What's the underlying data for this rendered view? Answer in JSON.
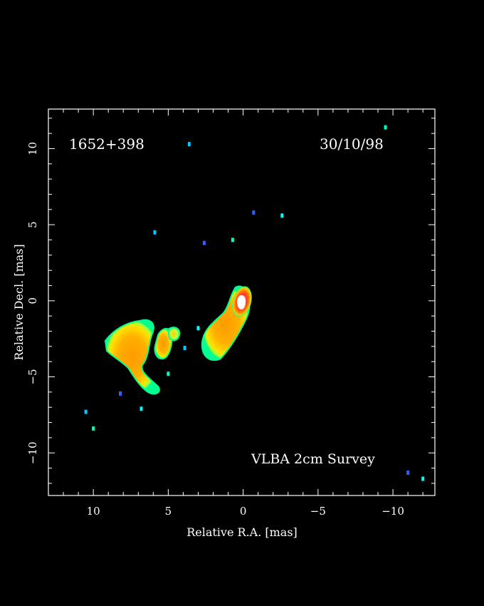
{
  "chart_data": {
    "type": "heatmap",
    "source": "1652+398",
    "date": "30/10/98",
    "survey_label": "VLBA 2cm Survey",
    "xlabel": "Relative R.A. [mas]",
    "ylabel": "Relative Decl. [mas]",
    "xlim": [
      13,
      -12.8
    ],
    "ylim": [
      -12.8,
      12.6
    ],
    "x_ticks": [
      10,
      5,
      0,
      -5,
      -10
    ],
    "y_ticks": [
      10,
      5,
      0,
      -5,
      -10
    ],
    "x_tick_labels": [
      "10",
      "5",
      "0",
      "−5",
      "−10"
    ],
    "y_tick_labels": [
      "10",
      "5",
      "0",
      "−5",
      "−10"
    ],
    "x_minor_step": 1,
    "y_minor_step": 1,
    "background_color": "#000000",
    "colormap": [
      "#0000ff",
      "#00ffff",
      "#00ff80",
      "#ffff00",
      "#ffa500",
      "#ff4000",
      "#ffffff"
    ],
    "components": [
      {
        "name": "core",
        "x": 0.0,
        "y": 0.0,
        "peak_level": 6
      },
      {
        "name": "inner-jet",
        "x": -0.1,
        "y": -0.7,
        "peak_level": 4
      },
      {
        "name": "jet-knot",
        "x": 1.9,
        "y": -2.7,
        "peak_level": 3
      },
      {
        "name": "knot-a",
        "x": 5.0,
        "y": -2.8,
        "peak_level": 3
      },
      {
        "name": "knot-b",
        "x": 4.8,
        "y": -2.2,
        "peak_level": 2
      },
      {
        "name": "outer-lobe",
        "x": 7.5,
        "y": -2.8,
        "peak_level": 3
      },
      {
        "name": "outer-lobe-tail",
        "x": 6.5,
        "y": -5.3,
        "peak_level": 3
      }
    ],
    "noise_spots": [
      {
        "x": 3.6,
        "y": 10.3
      },
      {
        "x": -9.5,
        "y": 11.4
      },
      {
        "x": -0.7,
        "y": 5.8
      },
      {
        "x": -2.6,
        "y": 5.6
      },
      {
        "x": 5.9,
        "y": 4.5
      },
      {
        "x": 0.7,
        "y": 4.0
      },
      {
        "x": 2.6,
        "y": 3.8
      },
      {
        "x": 3.0,
        "y": -1.8
      },
      {
        "x": 3.9,
        "y": -3.1
      },
      {
        "x": 5.0,
        "y": -4.8
      },
      {
        "x": 8.2,
        "y": -6.1
      },
      {
        "x": 6.8,
        "y": -7.1
      },
      {
        "x": 10.5,
        "y": -7.3
      },
      {
        "x": 10.0,
        "y": -8.4
      },
      {
        "x": -11.0,
        "y": -11.3
      },
      {
        "x": -12.0,
        "y": -11.7
      }
    ]
  }
}
